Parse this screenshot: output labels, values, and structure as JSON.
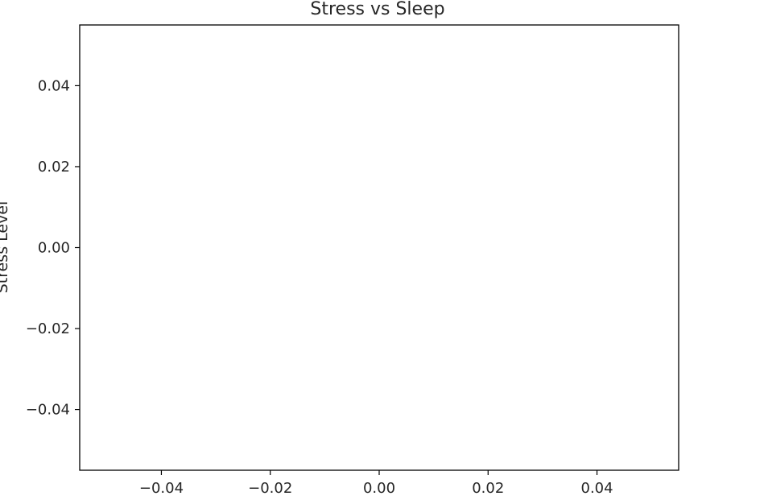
{
  "chart_data": {
    "type": "scatter",
    "title": "Stress vs Sleep",
    "xlabel": "",
    "ylabel": "Stress Level",
    "xlim": [
      -0.055,
      0.055
    ],
    "ylim": [
      -0.055,
      0.055
    ],
    "x_ticks": [
      -0.04,
      -0.02,
      0.0,
      0.02,
      0.04
    ],
    "y_ticks": [
      0.04,
      0.02,
      0.0,
      -0.02,
      -0.04
    ],
    "x_tick_labels": [
      "−0.04",
      "−0.02",
      "0.00",
      "0.02",
      "0.04"
    ],
    "y_tick_labels": [
      "0.04",
      "0.02",
      "0.00",
      "−0.02",
      "−0.04"
    ],
    "grid": false,
    "series": []
  }
}
